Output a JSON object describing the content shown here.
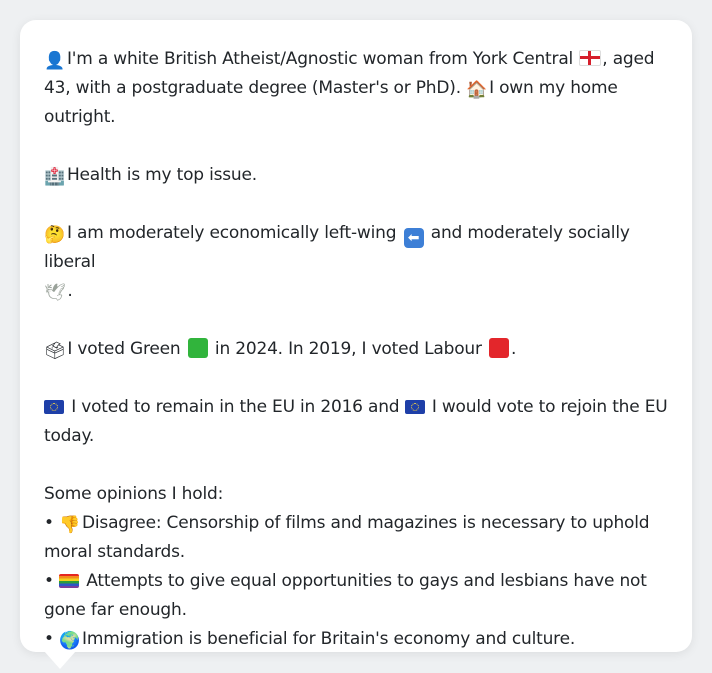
{
  "profile": {
    "intro_line1": "I'm a white British Atheist/Agnostic woman from York Central",
    "intro_line1_suffix": ", aged",
    "intro_line2": "43, with a postgraduate degree (Master's or PhD).",
    "intro_line2_suffix": "I own my home",
    "intro_line3": "outright.",
    "health": "Health is my top issue.",
    "economics_line1_a": "I am moderately economically left-wing",
    "economics_line1_b": "and moderately socially liberal",
    "economics_line2_suffix": ".",
    "vote_a": "I voted Green",
    "vote_b": "in 2024. In 2019, I voted Labour",
    "vote_c": ".",
    "eu_line1_a": "I voted to remain in the EU in 2016 and",
    "eu_line1_b": "I would vote to rejoin the EU",
    "eu_line2": "today.",
    "opinions_heading": "Some opinions I hold:",
    "opinions": [
      {
        "line1": "Disagree: Censorship of films and magazines is necessary to uphold",
        "line2": "moral standards."
      },
      {
        "line1": "Attempts to give equal opportunities to gays and lesbians have not",
        "line2": "gone far enough."
      },
      {
        "line1": "Immigration is beneficial for Britain's economy and culture.",
        "line2": ""
      }
    ],
    "bullet": "•"
  },
  "icons": {
    "person": "person-silhouette-icon",
    "england_flag": "england-flag-icon",
    "house": "house-icon",
    "hospital": "hospital-icon",
    "thinking": "thinking-face-icon",
    "left_arrow": "left-arrow-icon",
    "dove": "dove-icon",
    "ballot": "ballot-box-icon",
    "green_square": "green-square-icon",
    "red_square": "red-square-icon",
    "eu_flag": "eu-flag-icon",
    "thumbs_down": "thumbs-down-icon",
    "rainbow_flag": "rainbow-flag-icon",
    "globe": "globe-icon"
  },
  "colors": {
    "green_party": "#31b43c",
    "labour": "#e3262b"
  }
}
